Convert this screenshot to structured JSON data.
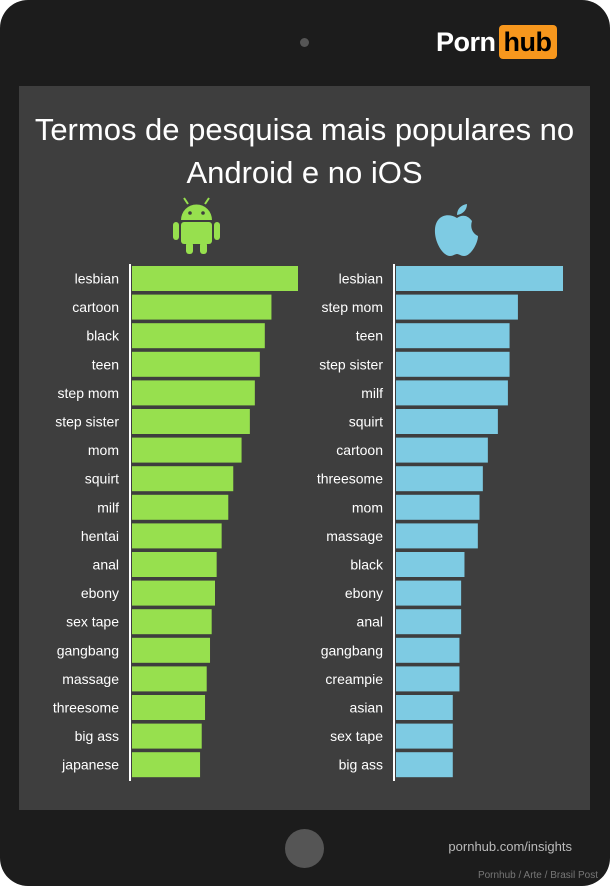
{
  "header": {
    "logo_part1": "Porn",
    "logo_part2": "hub"
  },
  "colors": {
    "android": "#97e04e",
    "ios": "#7ecbe3",
    "accent": "#f7971d",
    "axis": "#ffffff"
  },
  "chart_data": [
    {
      "type": "bar",
      "orientation": "horizontal",
      "title": "Termos de pesquisa mais populares no Android e no iOS",
      "legend": "android-icon",
      "categories": [
        "lesbian",
        "cartoon",
        "black",
        "teen",
        "step mom",
        "step sister",
        "mom",
        "squirt",
        "milf",
        "hentai",
        "anal",
        "ebony",
        "sex tape",
        "gangbang",
        "massage",
        "threesome",
        "big ass",
        "japanese"
      ],
      "values": [
        100,
        84,
        80,
        77,
        74,
        71,
        66,
        61,
        58,
        54,
        51,
        50,
        48,
        47,
        45,
        44,
        42,
        41
      ],
      "color": "#97e04e"
    },
    {
      "type": "bar",
      "orientation": "horizontal",
      "legend": "apple-icon",
      "categories": [
        "lesbian",
        "step mom",
        "teen",
        "step sister",
        "milf",
        "squirt",
        "cartoon",
        "threesome",
        "mom",
        "massage",
        "black",
        "ebony",
        "anal",
        "gangbang",
        "creampie",
        "asian",
        "sex tape",
        "big ass"
      ],
      "values": [
        100,
        73,
        68,
        68,
        67,
        61,
        55,
        52,
        50,
        49,
        41,
        39,
        39,
        38,
        38,
        34,
        34,
        34
      ],
      "color": "#7ecbe3"
    }
  ],
  "footer": {
    "insights": "pornhub.com/insights",
    "credit": "Pornhub / Arte / Brasil Post"
  }
}
